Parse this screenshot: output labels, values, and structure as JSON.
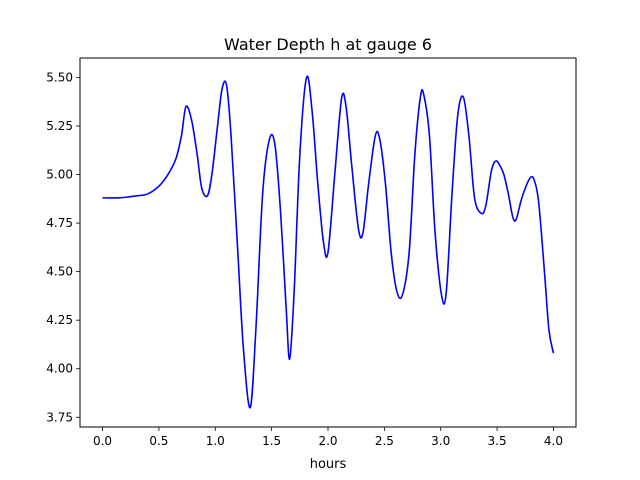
{
  "chart_data": {
    "type": "line",
    "title": "Water Depth h at gauge 6",
    "xlabel": "hours",
    "ylabel": "",
    "xlim": [
      -0.2,
      4.2
    ],
    "ylim": [
      3.7,
      5.6
    ],
    "grid": false,
    "legend": "none",
    "x_ticks": [
      0.0,
      0.5,
      1.0,
      1.5,
      2.0,
      2.5,
      3.0,
      3.5,
      4.0
    ],
    "x_tick_labels": [
      "0.0",
      "0.5",
      "1.0",
      "1.5",
      "2.0",
      "2.5",
      "3.0",
      "3.5",
      "4.0"
    ],
    "y_ticks": [
      3.75,
      4.0,
      4.25,
      4.5,
      4.75,
      5.0,
      5.25,
      5.5
    ],
    "y_tick_labels": [
      "3.75",
      "4.00",
      "4.25",
      "4.50",
      "4.75",
      "5.00",
      "5.25",
      "5.50"
    ],
    "series": [
      {
        "color": "#0000ff",
        "x": [
          0.0,
          0.15,
          0.3,
          0.4,
          0.5,
          0.58,
          0.65,
          0.7,
          0.74,
          0.79,
          0.84,
          0.88,
          0.93,
          0.97,
          1.02,
          1.06,
          1.1,
          1.14,
          1.2,
          1.25,
          1.31,
          1.36,
          1.42,
          1.48,
          1.53,
          1.58,
          1.63,
          1.66,
          1.7,
          1.75,
          1.81,
          1.86,
          1.91,
          1.96,
          2.0,
          2.06,
          2.12,
          2.16,
          2.21,
          2.27,
          2.31,
          2.36,
          2.42,
          2.46,
          2.51,
          2.56,
          2.61,
          2.66,
          2.72,
          2.77,
          2.82,
          2.85,
          2.9,
          2.95,
          3.01,
          3.05,
          3.1,
          3.15,
          3.2,
          3.25,
          3.3,
          3.36,
          3.4,
          3.45,
          3.49,
          3.53,
          3.56,
          3.6,
          3.64,
          3.67,
          3.72,
          3.79,
          3.83,
          3.87,
          3.92,
          3.96,
          4.0
        ],
        "values": [
          4.88,
          4.88,
          4.89,
          4.9,
          4.94,
          5.0,
          5.08,
          5.2,
          5.35,
          5.28,
          5.1,
          4.93,
          4.89,
          5.0,
          5.25,
          5.44,
          5.46,
          5.2,
          4.6,
          4.1,
          3.8,
          4.2,
          4.9,
          5.18,
          5.15,
          4.8,
          4.3,
          4.05,
          4.4,
          5.1,
          5.5,
          5.32,
          4.95,
          4.65,
          4.6,
          5.0,
          5.39,
          5.35,
          5.05,
          4.72,
          4.7,
          4.95,
          5.2,
          5.18,
          4.95,
          4.6,
          4.4,
          4.38,
          4.6,
          5.1,
          5.4,
          5.41,
          5.2,
          4.7,
          4.37,
          4.4,
          4.9,
          5.3,
          5.4,
          5.2,
          4.88,
          4.8,
          4.84,
          5.02,
          5.07,
          5.04,
          5.0,
          4.9,
          4.78,
          4.77,
          4.88,
          4.98,
          4.97,
          4.85,
          4.5,
          4.2,
          4.08
        ]
      }
    ]
  }
}
